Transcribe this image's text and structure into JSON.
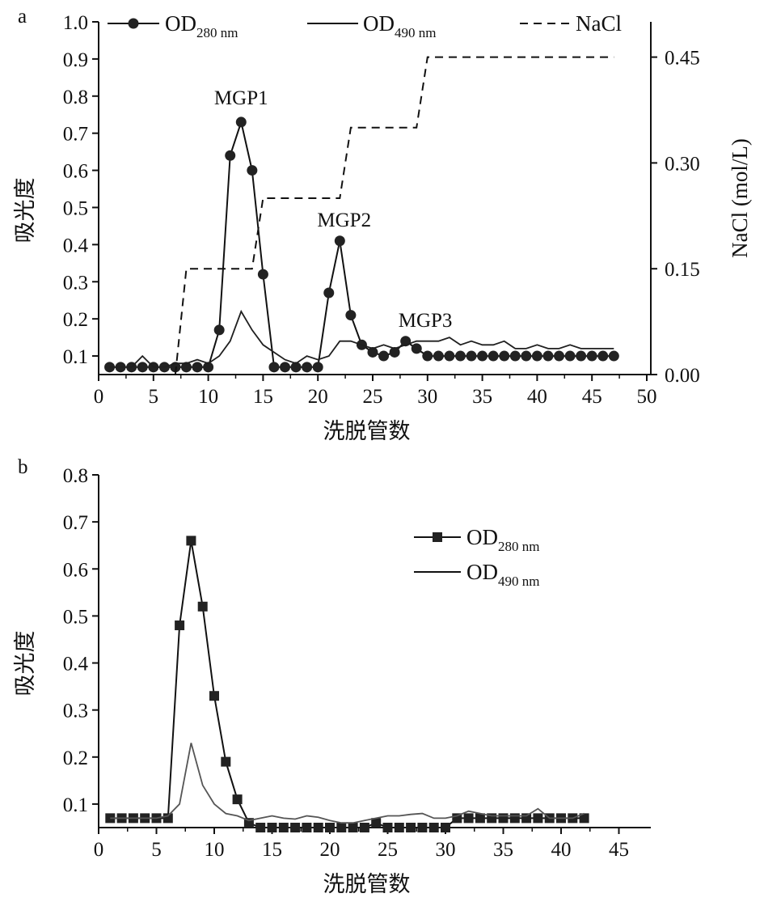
{
  "colors": {
    "ink": "#111111",
    "od490_a": "#1f1f1f",
    "od490_b": "#555555",
    "marker": "#222222"
  },
  "chart_data": [
    {
      "panel": "a",
      "type": "line",
      "xlabel": "洗脱管数",
      "ylabel": "吸光度",
      "y2label": "NaCl (mol/L)",
      "xlim": [
        0,
        50
      ],
      "ylim": [
        0.05,
        1.0
      ],
      "y2lim": [
        0,
        0.5
      ],
      "x_ticks": [
        0,
        5,
        10,
        15,
        20,
        25,
        30,
        35,
        40,
        45,
        50
      ],
      "y_ticks": [
        0.1,
        0.2,
        0.3,
        0.4,
        0.5,
        0.6,
        0.7,
        0.8,
        0.9,
        1.0
      ],
      "y_tick_labels": [
        "0.1",
        "0.2",
        "0.3",
        "0.4",
        "0.5",
        "0.6",
        "0.7",
        "0.8",
        "0.9",
        "1.0"
      ],
      "y2_ticks": [
        0,
        0.15,
        0.3,
        0.45
      ],
      "y2_tick_labels": [
        "0.00",
        "0.15",
        "0.30",
        "0.45"
      ],
      "legend_position": "top",
      "series": [
        {
          "name": "OD",
          "subscript": "280 nm",
          "axis": "left",
          "style": "line-circle",
          "x": [
            1,
            2,
            3,
            4,
            5,
            6,
            7,
            8,
            9,
            10,
            11,
            12,
            13,
            14,
            15,
            16,
            17,
            18,
            19,
            20,
            21,
            22,
            23,
            24,
            25,
            26,
            27,
            28,
            29,
            30,
            31,
            32,
            33,
            34,
            35,
            36,
            37,
            38,
            39,
            40,
            41,
            42,
            43,
            44,
            45,
            46,
            47
          ],
          "y": [
            0.07,
            0.07,
            0.07,
            0.07,
            0.07,
            0.07,
            0.07,
            0.07,
            0.07,
            0.07,
            0.17,
            0.64,
            0.73,
            0.6,
            0.32,
            0.07,
            0.07,
            0.07,
            0.07,
            0.07,
            0.27,
            0.41,
            0.21,
            0.13,
            0.11,
            0.1,
            0.11,
            0.14,
            0.12,
            0.1,
            0.1,
            0.1,
            0.1,
            0.1,
            0.1,
            0.1,
            0.1,
            0.1,
            0.1,
            0.1,
            0.1,
            0.1,
            0.1,
            0.1,
            0.1,
            0.1,
            0.1
          ]
        },
        {
          "name": "OD",
          "subscript": "490 nm",
          "axis": "left",
          "style": "line",
          "x": [
            1,
            2,
            3,
            4,
            5,
            6,
            7,
            8,
            9,
            10,
            11,
            12,
            13,
            14,
            15,
            16,
            17,
            18,
            19,
            20,
            21,
            22,
            23,
            24,
            25,
            26,
            27,
            28,
            29,
            30,
            31,
            32,
            33,
            34,
            35,
            36,
            37,
            38,
            39,
            40,
            41,
            42,
            43,
            44,
            45,
            46,
            47
          ],
          "y": [
            0.07,
            0.07,
            0.07,
            0.1,
            0.07,
            0.07,
            0.08,
            0.08,
            0.09,
            0.08,
            0.1,
            0.14,
            0.22,
            0.17,
            0.13,
            0.11,
            0.09,
            0.08,
            0.1,
            0.09,
            0.1,
            0.14,
            0.14,
            0.13,
            0.12,
            0.13,
            0.12,
            0.13,
            0.14,
            0.14,
            0.14,
            0.15,
            0.13,
            0.14,
            0.13,
            0.13,
            0.14,
            0.12,
            0.12,
            0.13,
            0.12,
            0.12,
            0.13,
            0.12,
            0.12,
            0.12,
            0.12
          ]
        },
        {
          "name": "NaCl",
          "axis": "right",
          "style": "dashed-step",
          "x": [
            7,
            8,
            14,
            15,
            22,
            23,
            29,
            30,
            47
          ],
          "y": [
            0,
            0.15,
            0.15,
            0.25,
            0.25,
            0.35,
            0.35,
            0.45,
            0.45
          ]
        }
      ],
      "annotations": [
        {
          "text": "MGP1",
          "x": 13,
          "y": 0.8
        },
        {
          "text": "MGP2",
          "x": 22.4,
          "y": 0.47
        },
        {
          "text": "MGP3",
          "x": 29.8,
          "y": 0.2
        }
      ]
    },
    {
      "panel": "b",
      "type": "line",
      "xlabel": "洗脱管数",
      "ylabel": "吸光度",
      "xlim": [
        0,
        48
      ],
      "ylim": [
        0.05,
        0.8
      ],
      "x_ticks": [
        0,
        5,
        10,
        15,
        20,
        25,
        30,
        35,
        40,
        45
      ],
      "y_ticks": [
        0.1,
        0.2,
        0.3,
        0.4,
        0.5,
        0.6,
        0.7,
        0.8
      ],
      "y_tick_labels": [
        "0.1",
        "0.2",
        "0.3",
        "0.4",
        "0.5",
        "0.6",
        "0.7",
        "0.8"
      ],
      "legend_position": "top-right",
      "series": [
        {
          "name": "OD",
          "subscript": "280 nm",
          "style": "line-square",
          "x": [
            1,
            2,
            3,
            4,
            5,
            6,
            7,
            8,
            9,
            10,
            11,
            12,
            13,
            14,
            15,
            16,
            17,
            18,
            19,
            20,
            21,
            22,
            23,
            24,
            25,
            26,
            27,
            28,
            29,
            30,
            31,
            32,
            33,
            34,
            35,
            36,
            37,
            38,
            39,
            40,
            41,
            42
          ],
          "y": [
            0.07,
            0.07,
            0.07,
            0.07,
            0.07,
            0.07,
            0.48,
            0.66,
            0.52,
            0.33,
            0.19,
            0.11,
            0.06,
            0.05,
            0.05,
            0.05,
            0.05,
            0.05,
            0.05,
            0.05,
            0.05,
            0.05,
            0.05,
            0.06,
            0.05,
            0.05,
            0.05,
            0.05,
            0.05,
            0.05,
            0.07,
            0.07,
            0.07,
            0.07,
            0.07,
            0.07,
            0.07,
            0.07,
            0.07,
            0.07,
            0.07,
            0.07
          ]
        },
        {
          "name": "OD",
          "subscript": "490 nm",
          "style": "line",
          "x": [
            1,
            2,
            3,
            4,
            5,
            6,
            7,
            8,
            9,
            10,
            11,
            12,
            13,
            14,
            15,
            16,
            17,
            18,
            19,
            20,
            21,
            22,
            23,
            24,
            25,
            26,
            27,
            28,
            29,
            30,
            31,
            32,
            33,
            34,
            35,
            36,
            37,
            38,
            39,
            40,
            41,
            42
          ],
          "y": [
            0.07,
            0.07,
            0.07,
            0.07,
            0.07,
            0.075,
            0.1,
            0.23,
            0.14,
            0.1,
            0.08,
            0.075,
            0.065,
            0.07,
            0.075,
            0.07,
            0.068,
            0.075,
            0.072,
            0.065,
            0.06,
            0.06,
            0.065,
            0.07,
            0.075,
            0.075,
            0.078,
            0.08,
            0.07,
            0.07,
            0.075,
            0.085,
            0.08,
            0.075,
            0.075,
            0.075,
            0.075,
            0.09,
            0.07,
            0.07,
            0.07,
            0.08
          ]
        }
      ]
    }
  ]
}
